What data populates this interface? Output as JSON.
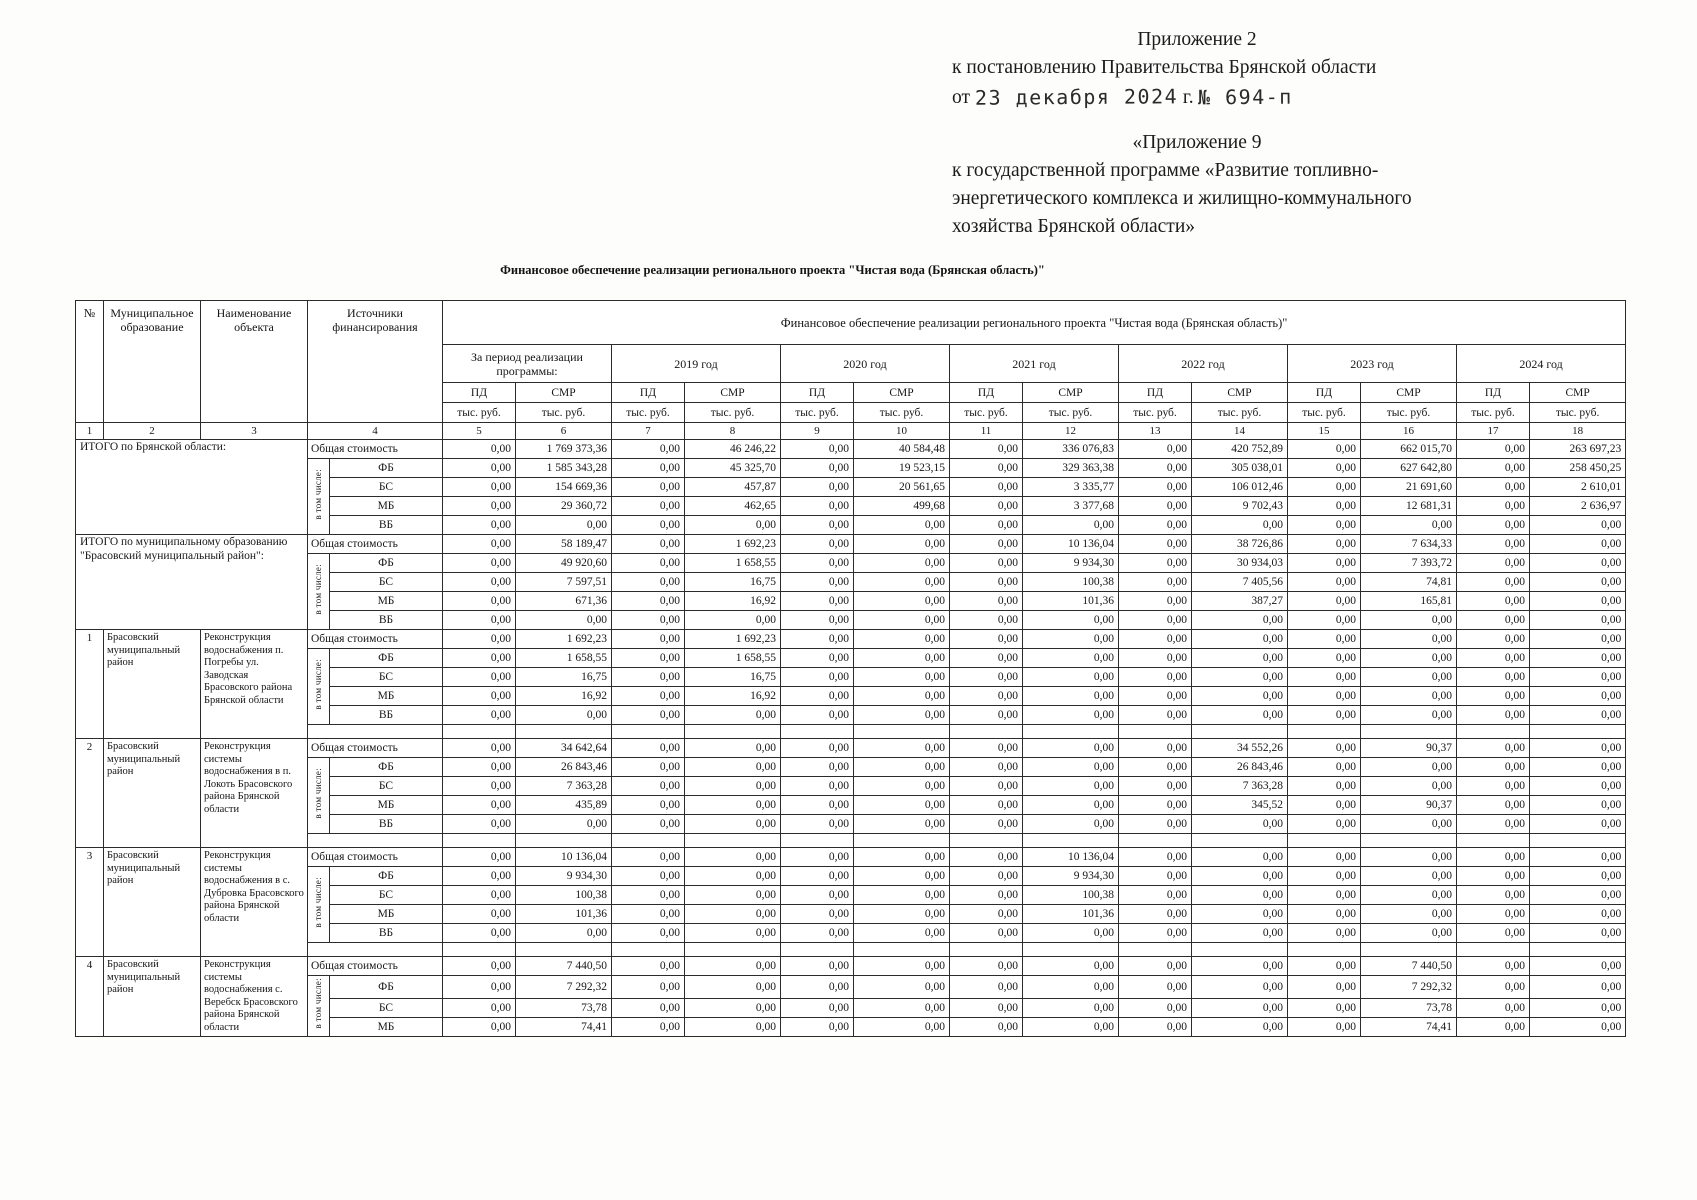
{
  "header": {
    "appendix_line": "Приложение 2",
    "decree_line": "к постановлению Правительства Брянской области",
    "date_prefix": "от",
    "date_stamp": "23 декабря 2024",
    "date_suffix": "г.",
    "number_stamp": "№ 694-п",
    "appendix9_line": "«Приложение 9",
    "program_lines": [
      "к государственной программе «Развитие топливно-",
      "энергетического комплекса и жилищно-коммунального",
      "хозяйства Брянской области»"
    ]
  },
  "title": "Финансовое обеспечение реализации регионального проекта  \"Чистая вода (Брянская область)\"",
  "table": {
    "columns": {
      "num": "№",
      "municipality": "Муниципальное образование",
      "object": "Наименование объекта",
      "sources": "Источники финансирования",
      "finance_header": "Финансовое обеспечение реализации регионального проекта  \"Чистая вода (Брянская область)\"",
      "period_total": "За период реализации программы:",
      "years": [
        "2019 год",
        "2020 год",
        "2021 год",
        "2022 год",
        "2023 год",
        "2024 год"
      ],
      "pd": "ПД",
      "smr": "СМР",
      "unit": "тыс. руб.",
      "col_numbers": [
        "1",
        "2",
        "3",
        "4",
        "5",
        "6",
        "7",
        "8",
        "9",
        "10",
        "11",
        "12",
        "13",
        "14",
        "15",
        "16",
        "17",
        "18"
      ]
    },
    "including_label": "в том числе:",
    "groups": [
      {
        "type": "total",
        "label": "ИТОГО по Брянской области:",
        "spacer": false,
        "rows": [
          {
            "source": "Общая стоимость",
            "values": [
              "0,00",
              "1 769 373,36",
              "0,00",
              "46 246,22",
              "0,00",
              "40 584,48",
              "0,00",
              "336 076,83",
              "0,00",
              "420 752,89",
              "0,00",
              "662 015,70",
              "0,00",
              "263 697,23"
            ]
          },
          {
            "source": "ФБ",
            "values": [
              "0,00",
              "1 585 343,28",
              "0,00",
              "45 325,70",
              "0,00",
              "19 523,15",
              "0,00",
              "329 363,38",
              "0,00",
              "305 038,01",
              "0,00",
              "627 642,80",
              "0,00",
              "258 450,25"
            ]
          },
          {
            "source": "БС",
            "values": [
              "0,00",
              "154 669,36",
              "0,00",
              "457,87",
              "0,00",
              "20 561,65",
              "0,00",
              "3 335,77",
              "0,00",
              "106 012,46",
              "0,00",
              "21 691,60",
              "0,00",
              "2 610,01"
            ]
          },
          {
            "source": "МБ",
            "values": [
              "0,00",
              "29 360,72",
              "0,00",
              "462,65",
              "0,00",
              "499,68",
              "0,00",
              "3 377,68",
              "0,00",
              "9 702,43",
              "0,00",
              "12 681,31",
              "0,00",
              "2 636,97"
            ]
          },
          {
            "source": "ВБ",
            "values": [
              "0,00",
              "0,00",
              "0,00",
              "0,00",
              "0,00",
              "0,00",
              "0,00",
              "0,00",
              "0,00",
              "0,00",
              "0,00",
              "0,00",
              "0,00",
              "0,00"
            ]
          }
        ]
      },
      {
        "type": "total",
        "label": "ИТОГО  по муниципальному образованию \"Брасовский муниципальный район\":",
        "spacer": false,
        "rows": [
          {
            "source": "Общая стоимость",
            "values": [
              "0,00",
              "58 189,47",
              "0,00",
              "1 692,23",
              "0,00",
              "0,00",
              "0,00",
              "10 136,04",
              "0,00",
              "38 726,86",
              "0,00",
              "7 634,33",
              "0,00",
              "0,00"
            ]
          },
          {
            "source": "ФБ",
            "values": [
              "0,00",
              "49 920,60",
              "0,00",
              "1 658,55",
              "0,00",
              "0,00",
              "0,00",
              "9 934,30",
              "0,00",
              "30 934,03",
              "0,00",
              "7 393,72",
              "0,00",
              "0,00"
            ]
          },
          {
            "source": "БС",
            "values": [
              "0,00",
              "7 597,51",
              "0,00",
              "16,75",
              "0,00",
              "0,00",
              "0,00",
              "100,38",
              "0,00",
              "7 405,56",
              "0,00",
              "74,81",
              "0,00",
              "0,00"
            ]
          },
          {
            "source": "МБ",
            "values": [
              "0,00",
              "671,36",
              "0,00",
              "16,92",
              "0,00",
              "0,00",
              "0,00",
              "101,36",
              "0,00",
              "387,27",
              "0,00",
              "165,81",
              "0,00",
              "0,00"
            ]
          },
          {
            "source": "ВБ",
            "values": [
              "0,00",
              "0,00",
              "0,00",
              "0,00",
              "0,00",
              "0,00",
              "0,00",
              "0,00",
              "0,00",
              "0,00",
              "0,00",
              "0,00",
              "0,00",
              "0,00"
            ]
          }
        ]
      },
      {
        "type": "object",
        "num": "1",
        "municipality": "Брасовский муниципальный район",
        "object": "Реконструкция водоснабжения  п. Погребы ул. Заводская Брасовского района Брянской области",
        "spacer": true,
        "rows": [
          {
            "source": "Общая стоимость",
            "values": [
              "0,00",
              "1 692,23",
              "0,00",
              "1 692,23",
              "0,00",
              "0,00",
              "0,00",
              "0,00",
              "0,00",
              "0,00",
              "0,00",
              "0,00",
              "0,00",
              "0,00"
            ]
          },
          {
            "source": "ФБ",
            "values": [
              "0,00",
              "1 658,55",
              "0,00",
              "1 658,55",
              "0,00",
              "0,00",
              "0,00",
              "0,00",
              "0,00",
              "0,00",
              "0,00",
              "0,00",
              "0,00",
              "0,00"
            ]
          },
          {
            "source": "БС",
            "values": [
              "0,00",
              "16,75",
              "0,00",
              "16,75",
              "0,00",
              "0,00",
              "0,00",
              "0,00",
              "0,00",
              "0,00",
              "0,00",
              "0,00",
              "0,00",
              "0,00"
            ]
          },
          {
            "source": "МБ",
            "values": [
              "0,00",
              "16,92",
              "0,00",
              "16,92",
              "0,00",
              "0,00",
              "0,00",
              "0,00",
              "0,00",
              "0,00",
              "0,00",
              "0,00",
              "0,00",
              "0,00"
            ]
          },
          {
            "source": "ВБ",
            "values": [
              "0,00",
              "0,00",
              "0,00",
              "0,00",
              "0,00",
              "0,00",
              "0,00",
              "0,00",
              "0,00",
              "0,00",
              "0,00",
              "0,00",
              "0,00",
              "0,00"
            ]
          }
        ]
      },
      {
        "type": "object",
        "num": "2",
        "municipality": "Брасовский муниципальный район",
        "object": "Реконструкция системы водоснабжения в п. Локоть Брасовского района Брянской области",
        "spacer": true,
        "rows": [
          {
            "source": "Общая стоимость",
            "values": [
              "0,00",
              "34 642,64",
              "0,00",
              "0,00",
              "0,00",
              "0,00",
              "0,00",
              "0,00",
              "0,00",
              "34 552,26",
              "0,00",
              "90,37",
              "0,00",
              "0,00"
            ]
          },
          {
            "source": "ФБ",
            "values": [
              "0,00",
              "26 843,46",
              "0,00",
              "0,00",
              "0,00",
              "0,00",
              "0,00",
              "0,00",
              "0,00",
              "26 843,46",
              "0,00",
              "0,00",
              "0,00",
              "0,00"
            ]
          },
          {
            "source": "БС",
            "values": [
              "0,00",
              "7 363,28",
              "0,00",
              "0,00",
              "0,00",
              "0,00",
              "0,00",
              "0,00",
              "0,00",
              "7 363,28",
              "0,00",
              "0,00",
              "0,00",
              "0,00"
            ]
          },
          {
            "source": "МБ",
            "values": [
              "0,00",
              "435,89",
              "0,00",
              "0,00",
              "0,00",
              "0,00",
              "0,00",
              "0,00",
              "0,00",
              "345,52",
              "0,00",
              "90,37",
              "0,00",
              "0,00"
            ]
          },
          {
            "source": "ВБ",
            "values": [
              "0,00",
              "0,00",
              "0,00",
              "0,00",
              "0,00",
              "0,00",
              "0,00",
              "0,00",
              "0,00",
              "0,00",
              "0,00",
              "0,00",
              "0,00",
              "0,00"
            ]
          }
        ]
      },
      {
        "type": "object",
        "num": "3",
        "municipality": "Брасовский муниципальный район",
        "object": "Реконструкция системы водоснабжения в с. Дубровка Брасовского района Брянской области",
        "spacer": true,
        "rows": [
          {
            "source": "Общая стоимость",
            "values": [
              "0,00",
              "10 136,04",
              "0,00",
              "0,00",
              "0,00",
              "0,00",
              "0,00",
              "10 136,04",
              "0,00",
              "0,00",
              "0,00",
              "0,00",
              "0,00",
              "0,00"
            ]
          },
          {
            "source": "ФБ",
            "values": [
              "0,00",
              "9 934,30",
              "0,00",
              "0,00",
              "0,00",
              "0,00",
              "0,00",
              "9 934,30",
              "0,00",
              "0,00",
              "0,00",
              "0,00",
              "0,00",
              "0,00"
            ]
          },
          {
            "source": "БС",
            "values": [
              "0,00",
              "100,38",
              "0,00",
              "0,00",
              "0,00",
              "0,00",
              "0,00",
              "100,38",
              "0,00",
              "0,00",
              "0,00",
              "0,00",
              "0,00",
              "0,00"
            ]
          },
          {
            "source": "МБ",
            "values": [
              "0,00",
              "101,36",
              "0,00",
              "0,00",
              "0,00",
              "0,00",
              "0,00",
              "101,36",
              "0,00",
              "0,00",
              "0,00",
              "0,00",
              "0,00",
              "0,00"
            ]
          },
          {
            "source": "ВБ",
            "values": [
              "0,00",
              "0,00",
              "0,00",
              "0,00",
              "0,00",
              "0,00",
              "0,00",
              "0,00",
              "0,00",
              "0,00",
              "0,00",
              "0,00",
              "0,00",
              "0,00"
            ]
          }
        ]
      },
      {
        "type": "object",
        "num": "4",
        "municipality": "Брасовский муниципальный район",
        "object": "Реконструкция системы водоснабжения с. Веребск Брасовского района Брянской области",
        "spacer": false,
        "rows": [
          {
            "source": "Общая стоимость",
            "values": [
              "0,00",
              "7 440,50",
              "0,00",
              "0,00",
              "0,00",
              "0,00",
              "0,00",
              "0,00",
              "0,00",
              "0,00",
              "0,00",
              "7 440,50",
              "0,00",
              "0,00"
            ]
          },
          {
            "source": "ФБ",
            "values": [
              "0,00",
              "7 292,32",
              "0,00",
              "0,00",
              "0,00",
              "0,00",
              "0,00",
              "0,00",
              "0,00",
              "0,00",
              "0,00",
              "7 292,32",
              "0,00",
              "0,00"
            ]
          },
          {
            "source": "БС",
            "values": [
              "0,00",
              "73,78",
              "0,00",
              "0,00",
              "0,00",
              "0,00",
              "0,00",
              "0,00",
              "0,00",
              "0,00",
              "0,00",
              "73,78",
              "0,00",
              "0,00"
            ]
          },
          {
            "source": "МБ",
            "values": [
              "0,00",
              "74,41",
              "0,00",
              "0,00",
              "0,00",
              "0,00",
              "0,00",
              "0,00",
              "0,00",
              "0,00",
              "0,00",
              "74,41",
              "0,00",
              "0,00"
            ]
          }
        ]
      }
    ]
  }
}
